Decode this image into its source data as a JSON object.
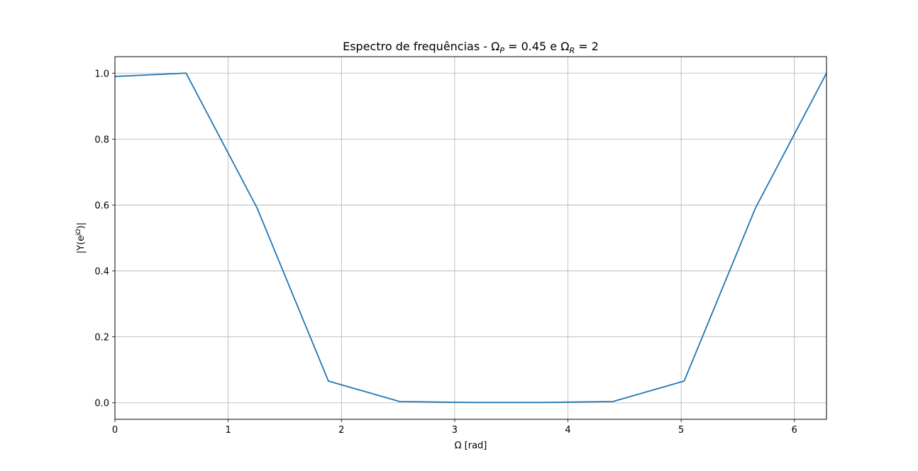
{
  "chart_data": {
    "type": "line",
    "title": {
      "prefix": "Espectro de frequências - Ω",
      "sub1": "P",
      "mid": " = 0.45 e Ω",
      "sub2": "R",
      "suffix": " = 2"
    },
    "xlabel": "Ω [rad]",
    "ylabel": {
      "prefix": "|Y(e",
      "sup": "jΩ",
      "suffix": ")|"
    },
    "xlim": [
      0,
      6.2832
    ],
    "ylim": [
      -0.05,
      1.05
    ],
    "xticks": [
      0,
      1,
      2,
      3,
      4,
      5,
      6
    ],
    "yticks": [
      0.0,
      0.2,
      0.4,
      0.6,
      0.8,
      1.0
    ],
    "xtick_labels": [
      "0",
      "1",
      "2",
      "3",
      "4",
      "5",
      "6"
    ],
    "ytick_labels": [
      "0.0",
      "0.2",
      "0.4",
      "0.6",
      "0.8",
      "1.0"
    ],
    "grid": true,
    "series": [
      {
        "color": "#1f77b4",
        "x": [
          0.0,
          0.6283,
          1.2566,
          1.885,
          2.5133,
          3.1416,
          3.7699,
          4.3982,
          5.0265,
          5.6549,
          6.2832
        ],
        "y": [
          0.99,
          1.0,
          0.59,
          0.066,
          0.004,
          0.001,
          0.001,
          0.004,
          0.066,
          0.59,
          1.0
        ]
      }
    ]
  }
}
